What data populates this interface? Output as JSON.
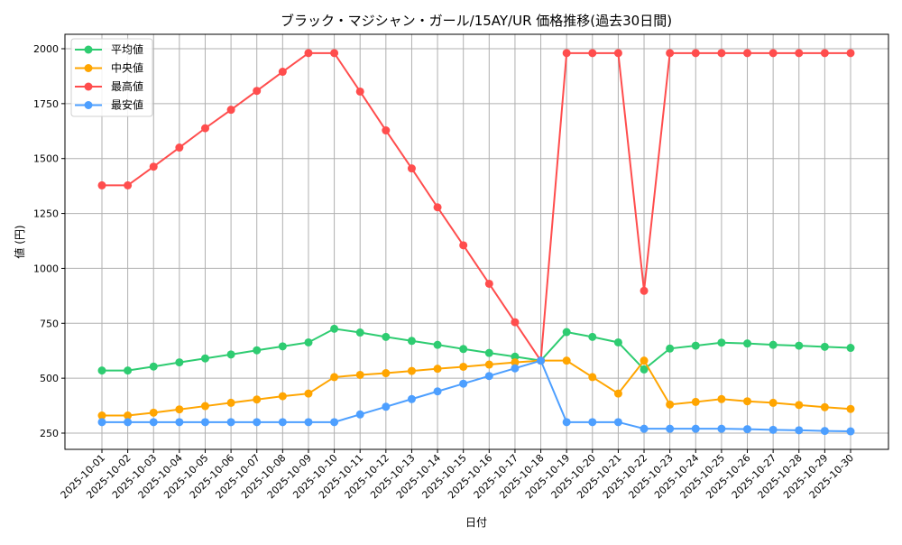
{
  "chart_data": {
    "type": "line",
    "title": "ブラック・マジシャン・ガール/15AY/UR 価格推移(過去30日間)",
    "xlabel": "日付",
    "ylabel": "値 (円)",
    "ylim": [
      175,
      2060
    ],
    "yticks": [
      250,
      500,
      750,
      1000,
      1250,
      1500,
      1750,
      2000
    ],
    "grid": true,
    "legend_position": "upper left",
    "categories": [
      "2025-10-01",
      "2025-10-02",
      "2025-10-03",
      "2025-10-04",
      "2025-10-05",
      "2025-10-06",
      "2025-10-07",
      "2025-10-08",
      "2025-10-09",
      "2025-10-10",
      "2025-10-11",
      "2025-10-12",
      "2025-10-13",
      "2025-10-14",
      "2025-10-15",
      "2025-10-16",
      "2025-10-17",
      "2025-10-18",
      "2025-10-19",
      "2025-10-20",
      "2025-10-21",
      "2025-10-22",
      "2025-10-23",
      "2025-10-24",
      "2025-10-25",
      "2025-10-26",
      "2025-10-27",
      "2025-10-28",
      "2025-10-29",
      "2025-10-30"
    ],
    "series": [
      {
        "name": "平均値",
        "color": "#2ecc71",
        "values": [
          535,
          535,
          553,
          572,
          590,
          608,
          627,
          645,
          663,
          725,
          708,
          688,
          670,
          652,
          633,
          615,
          598,
          580,
          710,
          688,
          663,
          540,
          635,
          648,
          662,
          658,
          652,
          648,
          643,
          638
        ]
      },
      {
        "name": "中央値",
        "color": "#ffa500",
        "values": [
          330,
          330,
          343,
          358,
          373,
          388,
          403,
          418,
          430,
          505,
          515,
          523,
          533,
          543,
          552,
          562,
          572,
          580,
          580,
          505,
          430,
          580,
          380,
          392,
          405,
          395,
          388,
          378,
          368,
          360
        ]
      },
      {
        "name": "最高値",
        "color": "#ff4d4d",
        "values": [
          1378,
          1378,
          1463,
          1550,
          1638,
          1722,
          1808,
          1895,
          1980,
          1980,
          1805,
          1628,
          1455,
          1278,
          1105,
          930,
          755,
          580,
          1980,
          1980,
          1980,
          898,
          1980,
          1980,
          1980,
          1980,
          1980,
          1980,
          1980,
          1980
        ]
      },
      {
        "name": "最安値",
        "color": "#4d9fff",
        "values": [
          300,
          300,
          300,
          300,
          300,
          300,
          300,
          300,
          300,
          300,
          335,
          370,
          405,
          440,
          475,
          510,
          545,
          580,
          300,
          300,
          300,
          270,
          270,
          270,
          270,
          268,
          265,
          263,
          260,
          258
        ]
      }
    ]
  }
}
